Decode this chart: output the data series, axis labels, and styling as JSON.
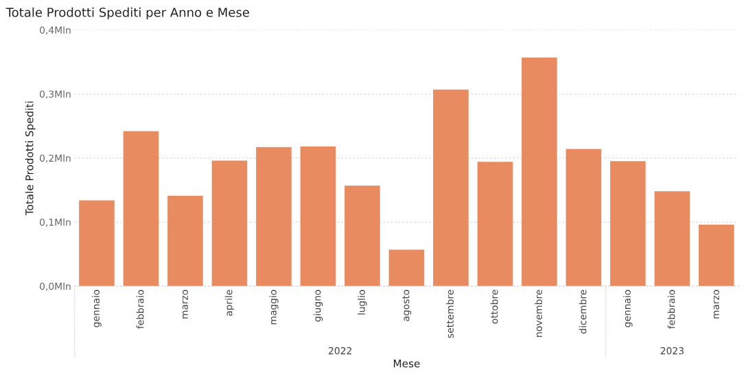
{
  "chart_data": {
    "type": "bar",
    "title": "Totale Prodotti Spediti per Anno e Mese",
    "xlabel": "Mese",
    "ylabel": "Totale Prodotti Spediti",
    "categories": [
      "gennaio",
      "febbraio",
      "marzo",
      "aprile",
      "maggio",
      "giugno",
      "luglio",
      "agosto",
      "settembre",
      "ottobre",
      "novembre",
      "dicembre",
      "gennaio",
      "febbraio",
      "marzo"
    ],
    "values": [
      0.134,
      0.242,
      0.141,
      0.196,
      0.217,
      0.218,
      0.157,
      0.057,
      0.307,
      0.194,
      0.357,
      0.214,
      0.195,
      0.148,
      0.096
    ],
    "color": "#e98b60",
    "ylim": [
      0,
      0.4
    ],
    "yticks": [
      {
        "value": 0,
        "label": "0,0Mln"
      },
      {
        "value": 0.1,
        "label": "0,1Mln"
      },
      {
        "value": 0.2,
        "label": "0,2Mln"
      },
      {
        "value": 0.3,
        "label": "0,3Mln"
      },
      {
        "value": 0.4,
        "label": "0,4Mln"
      }
    ],
    "grid": "y",
    "annotations": [
      "2022",
      "2023"
    ]
  }
}
